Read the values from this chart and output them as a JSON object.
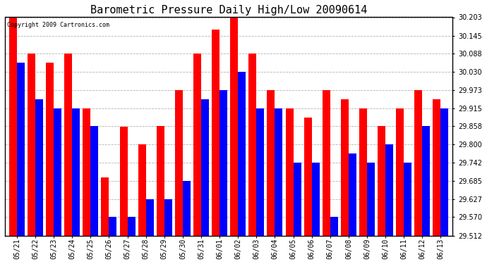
{
  "title": "Barometric Pressure Daily High/Low 20090614",
  "copyright": "Copyright 2009 Cartronics.com",
  "dates": [
    "05/21",
    "05/22",
    "05/23",
    "05/24",
    "05/25",
    "05/26",
    "05/27",
    "05/28",
    "05/29",
    "05/30",
    "05/31",
    "06/01",
    "06/02",
    "06/03",
    "06/04",
    "06/05",
    "06/06",
    "06/07",
    "06/08",
    "06/09",
    "06/10",
    "06/11",
    "06/12",
    "06/13"
  ],
  "highs": [
    30.203,
    30.088,
    30.059,
    30.088,
    29.915,
    29.695,
    29.857,
    29.8,
    29.858,
    29.973,
    30.088,
    30.165,
    30.203,
    30.088,
    29.973,
    29.915,
    29.885,
    29.973,
    29.944,
    29.915,
    29.858,
    29.915,
    29.973,
    29.944
  ],
  "lows": [
    30.059,
    29.944,
    29.915,
    29.915,
    29.858,
    29.57,
    29.57,
    29.627,
    29.627,
    29.685,
    29.944,
    29.973,
    30.03,
    29.915,
    29.915,
    29.742,
    29.742,
    29.57,
    29.771,
    29.742,
    29.8,
    29.742,
    29.858,
    29.915
  ],
  "high_color": "#ff0000",
  "low_color": "#0000ff",
  "bg_color": "#ffffff",
  "grid_color": "#aaaaaa",
  "ylim_min": 29.512,
  "ylim_max": 30.203,
  "yticks": [
    29.512,
    29.57,
    29.627,
    29.685,
    29.742,
    29.8,
    29.858,
    29.915,
    29.973,
    30.03,
    30.088,
    30.145,
    30.203
  ],
  "bar_width": 0.42,
  "title_fontsize": 11,
  "tick_fontsize": 7,
  "copyright_fontsize": 6
}
